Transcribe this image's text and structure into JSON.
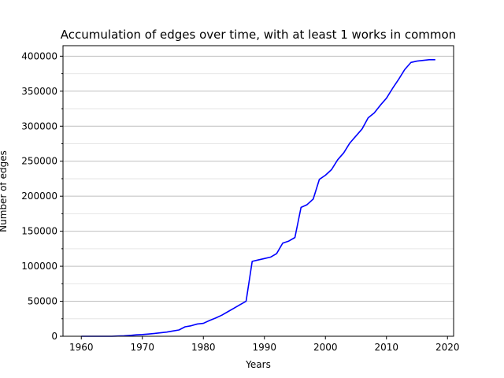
{
  "chart_data": {
    "type": "line",
    "title": "Accumulation of edges over time, with at least 1 works in common",
    "xlabel": "Years",
    "ylabel": "Number of edges",
    "xlim": [
      1957,
      2021
    ],
    "ylim": [
      0,
      415000
    ],
    "xticks": [
      1960,
      1970,
      1980,
      1990,
      2000,
      2010,
      2020
    ],
    "yticks": [
      0,
      50000,
      100000,
      150000,
      200000,
      250000,
      300000,
      350000,
      400000
    ],
    "grid": {
      "major_y": true,
      "minor_y": true,
      "x": false
    },
    "colors": {
      "line": "#0000ff",
      "major_grid": "#bfbfbf",
      "minor_grid": "#e6e6e6"
    },
    "series": [
      {
        "x": [
          1960,
          1961,
          1962,
          1963,
          1964,
          1965,
          1966,
          1967,
          1968,
          1969,
          1970,
          1971,
          1972,
          1973,
          1974,
          1975,
          1976,
          1977,
          1978,
          1979,
          1980,
          1981,
          1982,
          1983,
          1984,
          1985,
          1986,
          1987,
          1988,
          1989,
          1990,
          1991,
          1992,
          1993,
          1994,
          1995,
          1996,
          1997,
          1998,
          1999,
          2000,
          2001,
          2002,
          2003,
          2004,
          2005,
          2006,
          2007,
          2008,
          2009,
          2010,
          2011,
          2012,
          2013,
          2014,
          2015,
          2016,
          2017,
          2018
        ],
        "values": [
          0,
          0,
          0,
          0,
          0,
          0,
          300,
          600,
          1200,
          2000,
          2500,
          3200,
          4000,
          5000,
          6000,
          7500,
          9000,
          13500,
          15000,
          17500,
          18500,
          22500,
          26000,
          30000,
          35000,
          40000,
          45000,
          50000,
          107000,
          109000,
          111000,
          113000,
          118000,
          133000,
          136000,
          141000,
          184000,
          188000,
          196000,
          224000,
          230000,
          238000,
          252000,
          262000,
          276000,
          286000,
          296000,
          312000,
          319000,
          330000,
          340000,
          354000,
          367000,
          381000,
          391000,
          393000,
          394000,
          395000,
          395000
        ]
      }
    ]
  }
}
